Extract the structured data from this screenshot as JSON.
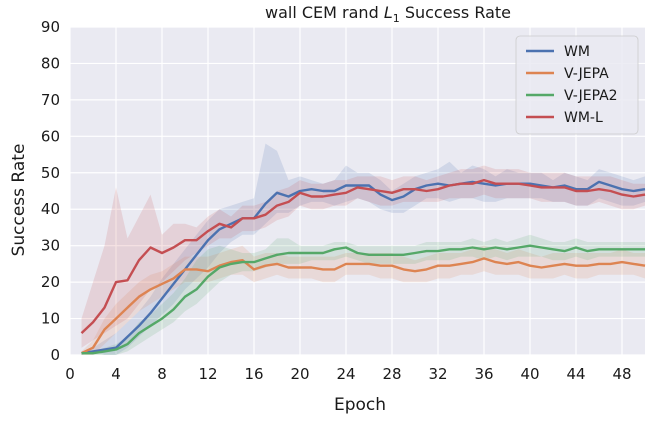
{
  "chart_data": {
    "type": "line",
    "title_prefix": "wall CEM rand ",
    "title_var": "L",
    "title_sub": "1",
    "title_suffix": " Success Rate",
    "xlabel": "Epoch",
    "ylabel": "Success Rate",
    "xlim": [
      0,
      50
    ],
    "ylim": [
      0,
      90
    ],
    "xticks": [
      0,
      4,
      8,
      12,
      16,
      20,
      24,
      28,
      32,
      36,
      40,
      44,
      48
    ],
    "yticks": [
      0,
      10,
      20,
      30,
      40,
      50,
      60,
      70,
      80,
      90
    ],
    "grid": true,
    "legend_position": "top-right",
    "x": [
      1,
      2,
      3,
      4,
      5,
      6,
      7,
      8,
      9,
      10,
      11,
      12,
      13,
      14,
      15,
      16,
      17,
      18,
      19,
      20,
      21,
      22,
      23,
      24,
      25,
      26,
      27,
      28,
      29,
      30,
      31,
      32,
      33,
      34,
      35,
      36,
      37,
      38,
      39,
      40,
      41,
      42,
      43,
      44,
      45,
      46,
      47,
      48,
      49,
      50
    ],
    "series": [
      {
        "name": "WM",
        "color": "#4c72b0",
        "values": [
          0.5,
          1,
          1.5,
          2,
          5,
          8,
          11.5,
          15.5,
          19.5,
          23.5,
          27.5,
          31.5,
          34.5,
          36,
          37.5,
          37.5,
          41.5,
          44.5,
          43.5,
          45,
          45.5,
          45,
          45,
          46.5,
          46.5,
          46.5,
          44,
          42.5,
          43.5,
          45.5,
          46.5,
          47,
          46.5,
          47,
          47.5,
          47,
          46.5,
          47,
          47,
          47,
          46.5,
          46,
          46.5,
          45.5,
          45.5,
          47.5,
          46.5,
          45.5,
          45,
          45.5
        ],
        "lower": [
          0.5,
          1,
          0,
          0,
          2,
          5,
          8,
          11,
          14,
          18,
          21,
          24,
          28,
          31,
          33,
          33,
          36,
          39,
          39,
          41,
          42,
          42,
          41,
          42,
          43,
          42,
          40,
          39,
          39,
          41,
          43,
          43,
          42,
          43,
          43,
          42,
          42,
          43,
          43,
          43,
          43,
          42,
          42,
          41,
          41,
          43,
          42,
          41,
          41,
          42
        ],
        "upper": [
          1,
          2,
          4,
          6,
          9,
          12,
          16,
          21,
          25,
          29,
          33,
          37,
          40,
          41,
          42,
          43,
          58,
          56,
          48,
          49,
          48,
          47,
          48,
          52,
          50,
          50,
          48,
          45,
          47,
          49,
          50,
          51,
          53,
          50,
          52,
          51,
          49,
          51,
          50,
          50,
          50,
          48,
          50,
          49,
          48,
          51,
          50,
          49,
          48,
          49
        ]
      },
      {
        "name": "V-JEPA",
        "color": "#dd8452",
        "values": [
          0.5,
          2,
          7,
          10,
          13,
          16,
          18,
          19.5,
          21,
          23.5,
          23.5,
          23,
          24.5,
          25.5,
          26,
          23.5,
          24.5,
          25,
          24,
          24,
          24,
          23.5,
          23.5,
          25,
          25,
          25,
          24.5,
          24.5,
          23.5,
          23,
          23.5,
          24.5,
          24.5,
          25,
          25.5,
          26.5,
          25.5,
          25,
          25.5,
          24.5,
          24,
          24.5,
          25,
          24.5,
          24.5,
          25,
          25,
          25.5,
          25,
          24.5
        ],
        "lower": [
          0,
          0,
          3,
          6,
          9,
          12,
          14,
          16,
          18,
          20,
          20,
          20,
          21,
          22,
          22,
          20,
          21,
          22,
          21,
          21,
          21,
          20,
          20,
          22,
          22,
          22,
          21,
          21,
          20,
          20,
          20,
          21,
          21,
          22,
          22,
          23,
          22,
          22,
          22,
          21,
          21,
          21,
          22,
          21,
          21,
          22,
          22,
          22,
          22,
          21
        ],
        "upper": [
          1,
          4,
          10,
          14,
          17,
          20,
          22,
          23,
          25,
          27,
          27,
          27,
          28,
          29,
          30,
          27,
          28,
          28,
          27,
          27,
          27,
          27,
          27,
          28,
          28,
          28,
          28,
          28,
          27,
          26,
          27,
          28,
          28,
          28,
          29,
          30,
          29,
          28,
          29,
          28,
          27,
          28,
          28,
          28,
          28,
          28,
          28,
          29,
          28,
          28
        ]
      },
      {
        "name": "V-JEPA2",
        "color": "#55a868",
        "values": [
          0.5,
          0.5,
          1,
          1.5,
          3,
          6,
          8,
          10,
          12.5,
          16,
          18,
          21.5,
          24,
          25,
          25.5,
          25.5,
          26.5,
          27.5,
          28,
          28,
          28,
          28,
          29,
          29.5,
          28,
          27.5,
          27.5,
          27.5,
          27.5,
          28,
          28.5,
          28.5,
          29,
          29,
          29.5,
          29,
          29.5,
          29,
          29.5,
          30,
          29.5,
          29,
          28.5,
          29.5,
          28.5,
          29,
          29,
          29,
          29,
          29
        ],
        "lower": [
          0,
          0,
          0,
          0,
          1,
          3,
          5,
          7,
          9,
          12,
          14,
          17,
          20,
          22,
          23,
          23,
          24,
          25,
          25,
          25,
          26,
          26,
          26,
          27,
          26,
          25,
          25,
          25,
          25,
          25,
          26,
          26,
          26,
          27,
          27,
          26,
          27,
          26,
          27,
          27,
          27,
          26,
          26,
          27,
          26,
          27,
          27,
          27,
          27,
          27
        ],
        "upper": [
          1,
          1,
          2,
          3,
          5,
          9,
          11,
          14,
          17,
          21,
          26,
          29,
          30,
          29,
          28,
          28,
          29,
          32,
          32,
          30,
          30,
          30,
          31,
          31,
          30,
          30,
          30,
          30,
          30,
          30,
          31,
          31,
          31,
          31,
          32,
          31,
          32,
          31,
          32,
          33,
          32,
          31,
          31,
          32,
          31,
          31,
          31,
          31,
          31,
          31
        ]
      },
      {
        "name": "WM-L",
        "color": "#c44e52",
        "values": [
          6,
          9,
          13,
          20,
          20.5,
          26,
          29.5,
          28,
          29.5,
          31.5,
          31.5,
          34,
          36,
          35,
          37.5,
          37.5,
          38.5,
          41,
          42,
          44.5,
          43.5,
          43.5,
          44,
          44.5,
          46,
          45.5,
          45,
          44.5,
          45.5,
          45.5,
          45,
          45.5,
          46.5,
          47,
          47,
          48,
          47,
          47,
          47,
          46.5,
          46,
          46,
          46,
          45,
          45,
          45.5,
          45,
          44,
          43.5,
          44
        ],
        "lower": [
          2,
          4,
          6,
          8,
          10,
          14,
          18,
          20,
          23,
          26,
          28,
          30,
          32,
          32,
          34,
          34,
          35,
          37,
          38,
          41,
          40,
          40,
          41,
          41,
          43,
          42,
          41,
          41,
          42,
          42,
          42,
          42,
          43,
          43,
          43,
          44,
          43,
          43,
          43,
          43,
          42,
          42,
          42,
          41,
          41,
          42,
          41,
          40,
          40,
          41
        ],
        "upper": [
          10,
          20,
          30,
          46,
          32,
          38,
          44,
          33,
          36,
          36,
          35,
          38,
          40,
          38,
          41,
          41,
          42,
          45,
          46,
          48,
          47,
          47,
          48,
          48,
          49,
          49,
          49,
          48,
          49,
          49,
          48,
          49,
          50,
          51,
          51,
          52,
          51,
          51,
          51,
          50,
          50,
          50,
          50,
          49,
          49,
          49,
          49,
          48,
          47,
          47
        ]
      }
    ]
  }
}
